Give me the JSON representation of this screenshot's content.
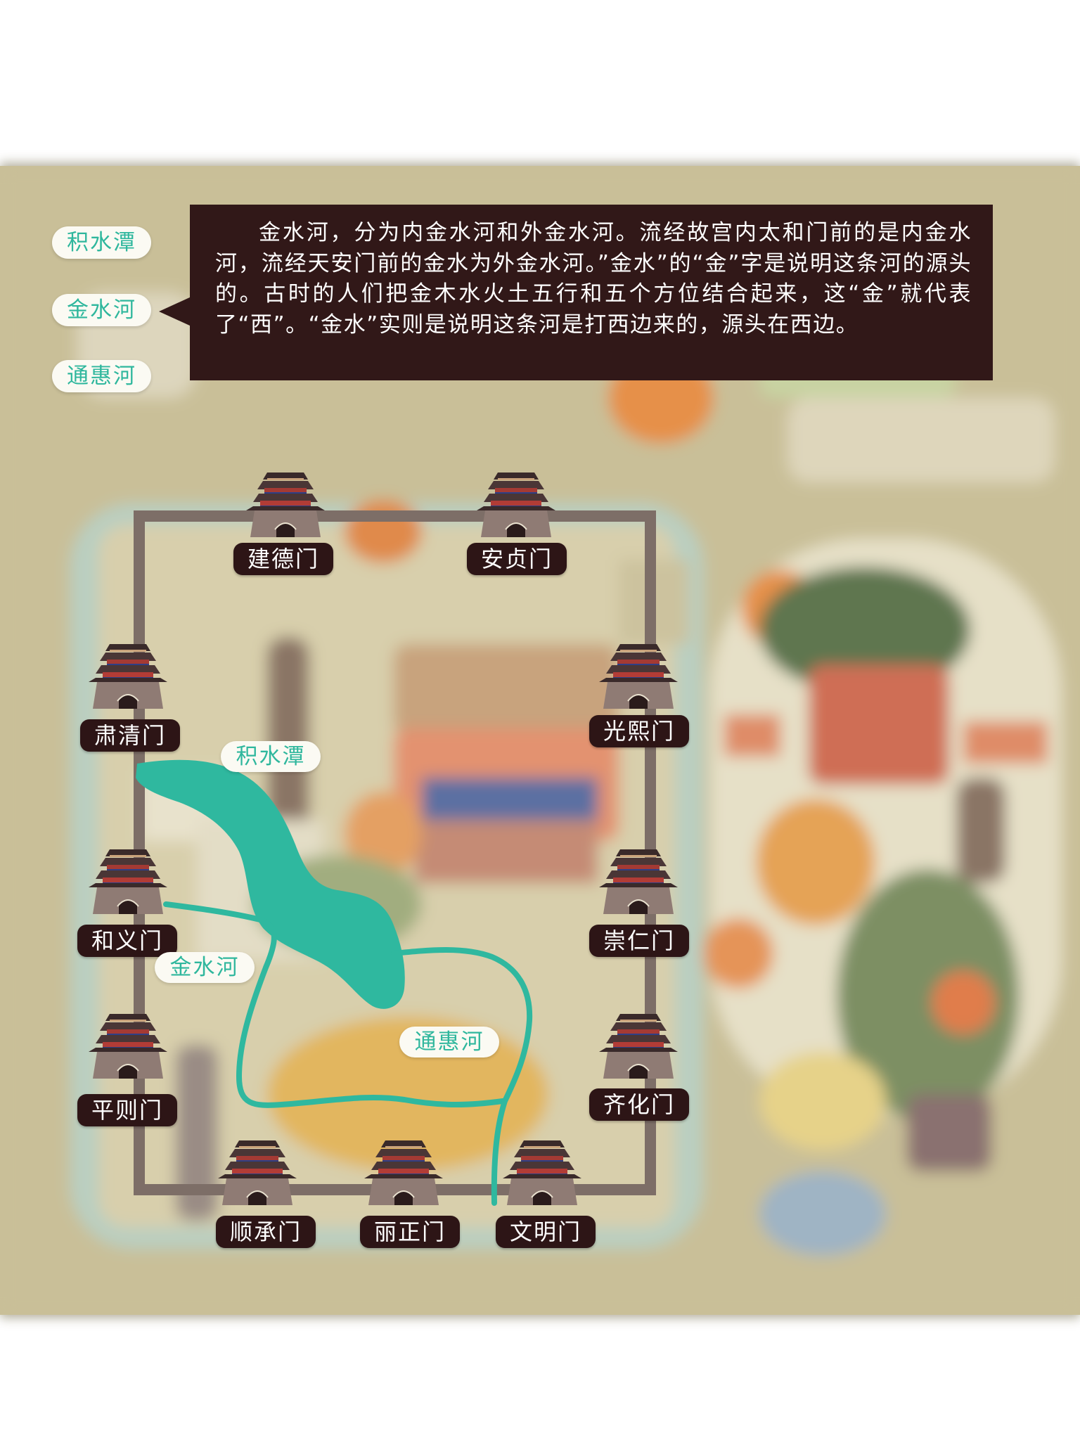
{
  "legend": {
    "items": [
      {
        "label": "积水潭"
      },
      {
        "label": "金水河"
      },
      {
        "label": "通惠河"
      }
    ],
    "selected_index": 1
  },
  "info": {
    "text": "金水河，分为内金水河和外金水河。流经故宫内太和门前的是内金水河，流经天安门前的金水为外金水河。”金水”的“金”字是说明这条河的源头的。古时的人们把金木水火土五行和五个方位结合起来，这“金”就代表了“西”。“金水”实则是说明这条河是打西边来的，源头在西边。"
  },
  "gates": {
    "north_west": "建德门",
    "north_east": "安贞门",
    "west_1": "肃清门",
    "west_2": "和义门",
    "west_3": "平则门",
    "east_1": "光熙门",
    "east_2": "崇仁门",
    "east_3": "齐化门",
    "south_1": "顺承门",
    "south_2": "丽正门",
    "south_3": "文明门"
  },
  "map_labels": {
    "jishuitan": "积水潭",
    "jinshuihe": "金水河",
    "tonghuihe": "通惠河"
  },
  "colors": {
    "panel_bg": "#c9bf98",
    "water": "#2fb89f",
    "wall": "#7d6e67",
    "label_bg": "#2d1516",
    "chip_text": "#2fb79d",
    "info_bg": "#311818"
  },
  "icons": {
    "gate": "city-gate-tower-icon"
  }
}
